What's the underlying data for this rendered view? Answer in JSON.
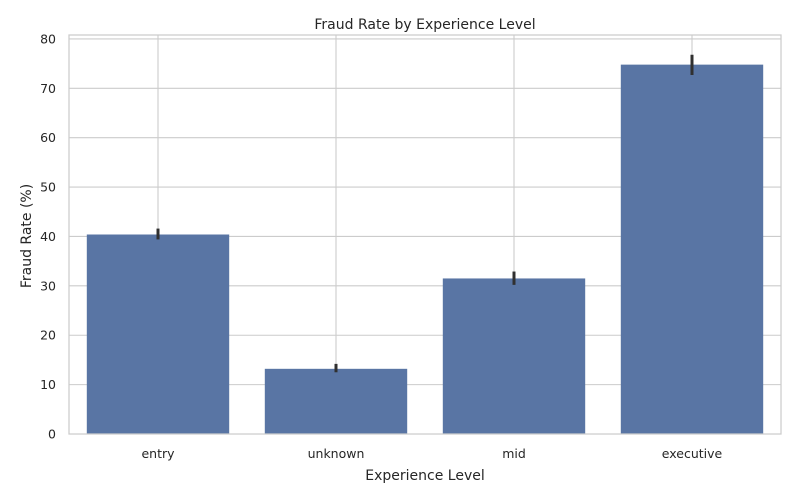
{
  "chart_data": {
    "type": "bar",
    "title": "Fraud Rate by Experience Level",
    "xlabel": "Experience Level",
    "ylabel": "Fraud Rate (%)",
    "categories": [
      "entry",
      "unknown",
      "mid",
      "executive"
    ],
    "values": [
      40.4,
      13.2,
      31.5,
      74.8
    ],
    "error_low": [
      39.4,
      12.5,
      30.2,
      72.7
    ],
    "error_high": [
      41.6,
      14.2,
      32.9,
      76.8
    ],
    "ylim": [
      0,
      80.8
    ],
    "yticks": [
      0,
      10,
      20,
      30,
      40,
      50,
      60,
      70,
      80
    ],
    "grid": true,
    "bar_color": "#5975a4",
    "errorbar_color": "#303030",
    "grid_color": "#cccccc",
    "legend": "none"
  }
}
